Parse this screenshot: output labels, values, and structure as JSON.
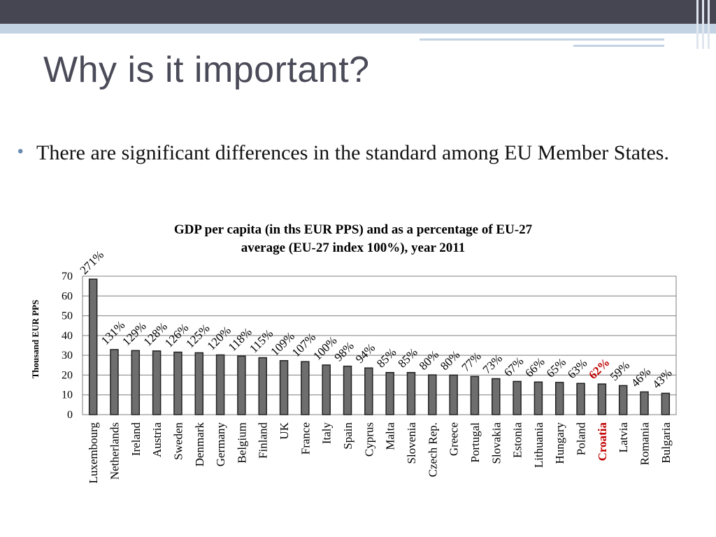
{
  "slide": {
    "title": "Why is it important?",
    "bullet": "There are significant differences in the standard among EU Member States."
  },
  "colors": {
    "bar": "#6e6e6e",
    "highlight": "#c00000",
    "title_text": "#4a4a58"
  },
  "chart_data": {
    "type": "bar",
    "title_line1": "GDP per capita (in ths EUR PPS) and as a percentage of EU-27",
    "title_line2": "average (EU-27 index 100%), year 2011",
    "ylabel": "Thousand EUR PPS",
    "ylim": [
      0,
      70
    ],
    "yticks": [
      0,
      10,
      20,
      30,
      40,
      50,
      60,
      70
    ],
    "grid": true,
    "highlight_category": "Croatia",
    "categories": [
      "Luxembourg",
      "Netherlands",
      "Ireland",
      "Austria",
      "Sweden",
      "Denmark",
      "Germany",
      "Belgium",
      "Finland",
      "UK",
      "France",
      "Italy",
      "Spain",
      "Cyprus",
      "Malta",
      "Slovenia",
      "Czech Rep.",
      "Greece",
      "Portugal",
      "Slovakia",
      "Estonia",
      "Lithuania",
      "Hungary",
      "Poland",
      "Croatia",
      "Latvia",
      "Romania",
      "Bulgaria"
    ],
    "series": [
      {
        "values": [
          68.5,
          32.9,
          32.4,
          32.2,
          31.6,
          31.3,
          30.2,
          29.6,
          28.8,
          27.3,
          26.8,
          25.1,
          24.5,
          23.6,
          21.3,
          21.3,
          20.1,
          20.0,
          19.3,
          18.2,
          16.8,
          16.5,
          16.3,
          15.8,
          15.5,
          14.7,
          11.5,
          10.8
        ]
      }
    ],
    "data_labels": [
      "271%",
      "131%",
      "129%",
      "128%",
      "126%",
      "125%",
      "120%",
      "118%",
      "115%",
      "109%",
      "107%",
      "100%",
      "98%",
      "94%",
      "85%",
      "85%",
      "80%",
      "80%",
      "77%",
      "73%",
      "67%",
      "66%",
      "65%",
      "63%",
      "62%",
      "59%",
      "46%",
      "43%"
    ]
  }
}
